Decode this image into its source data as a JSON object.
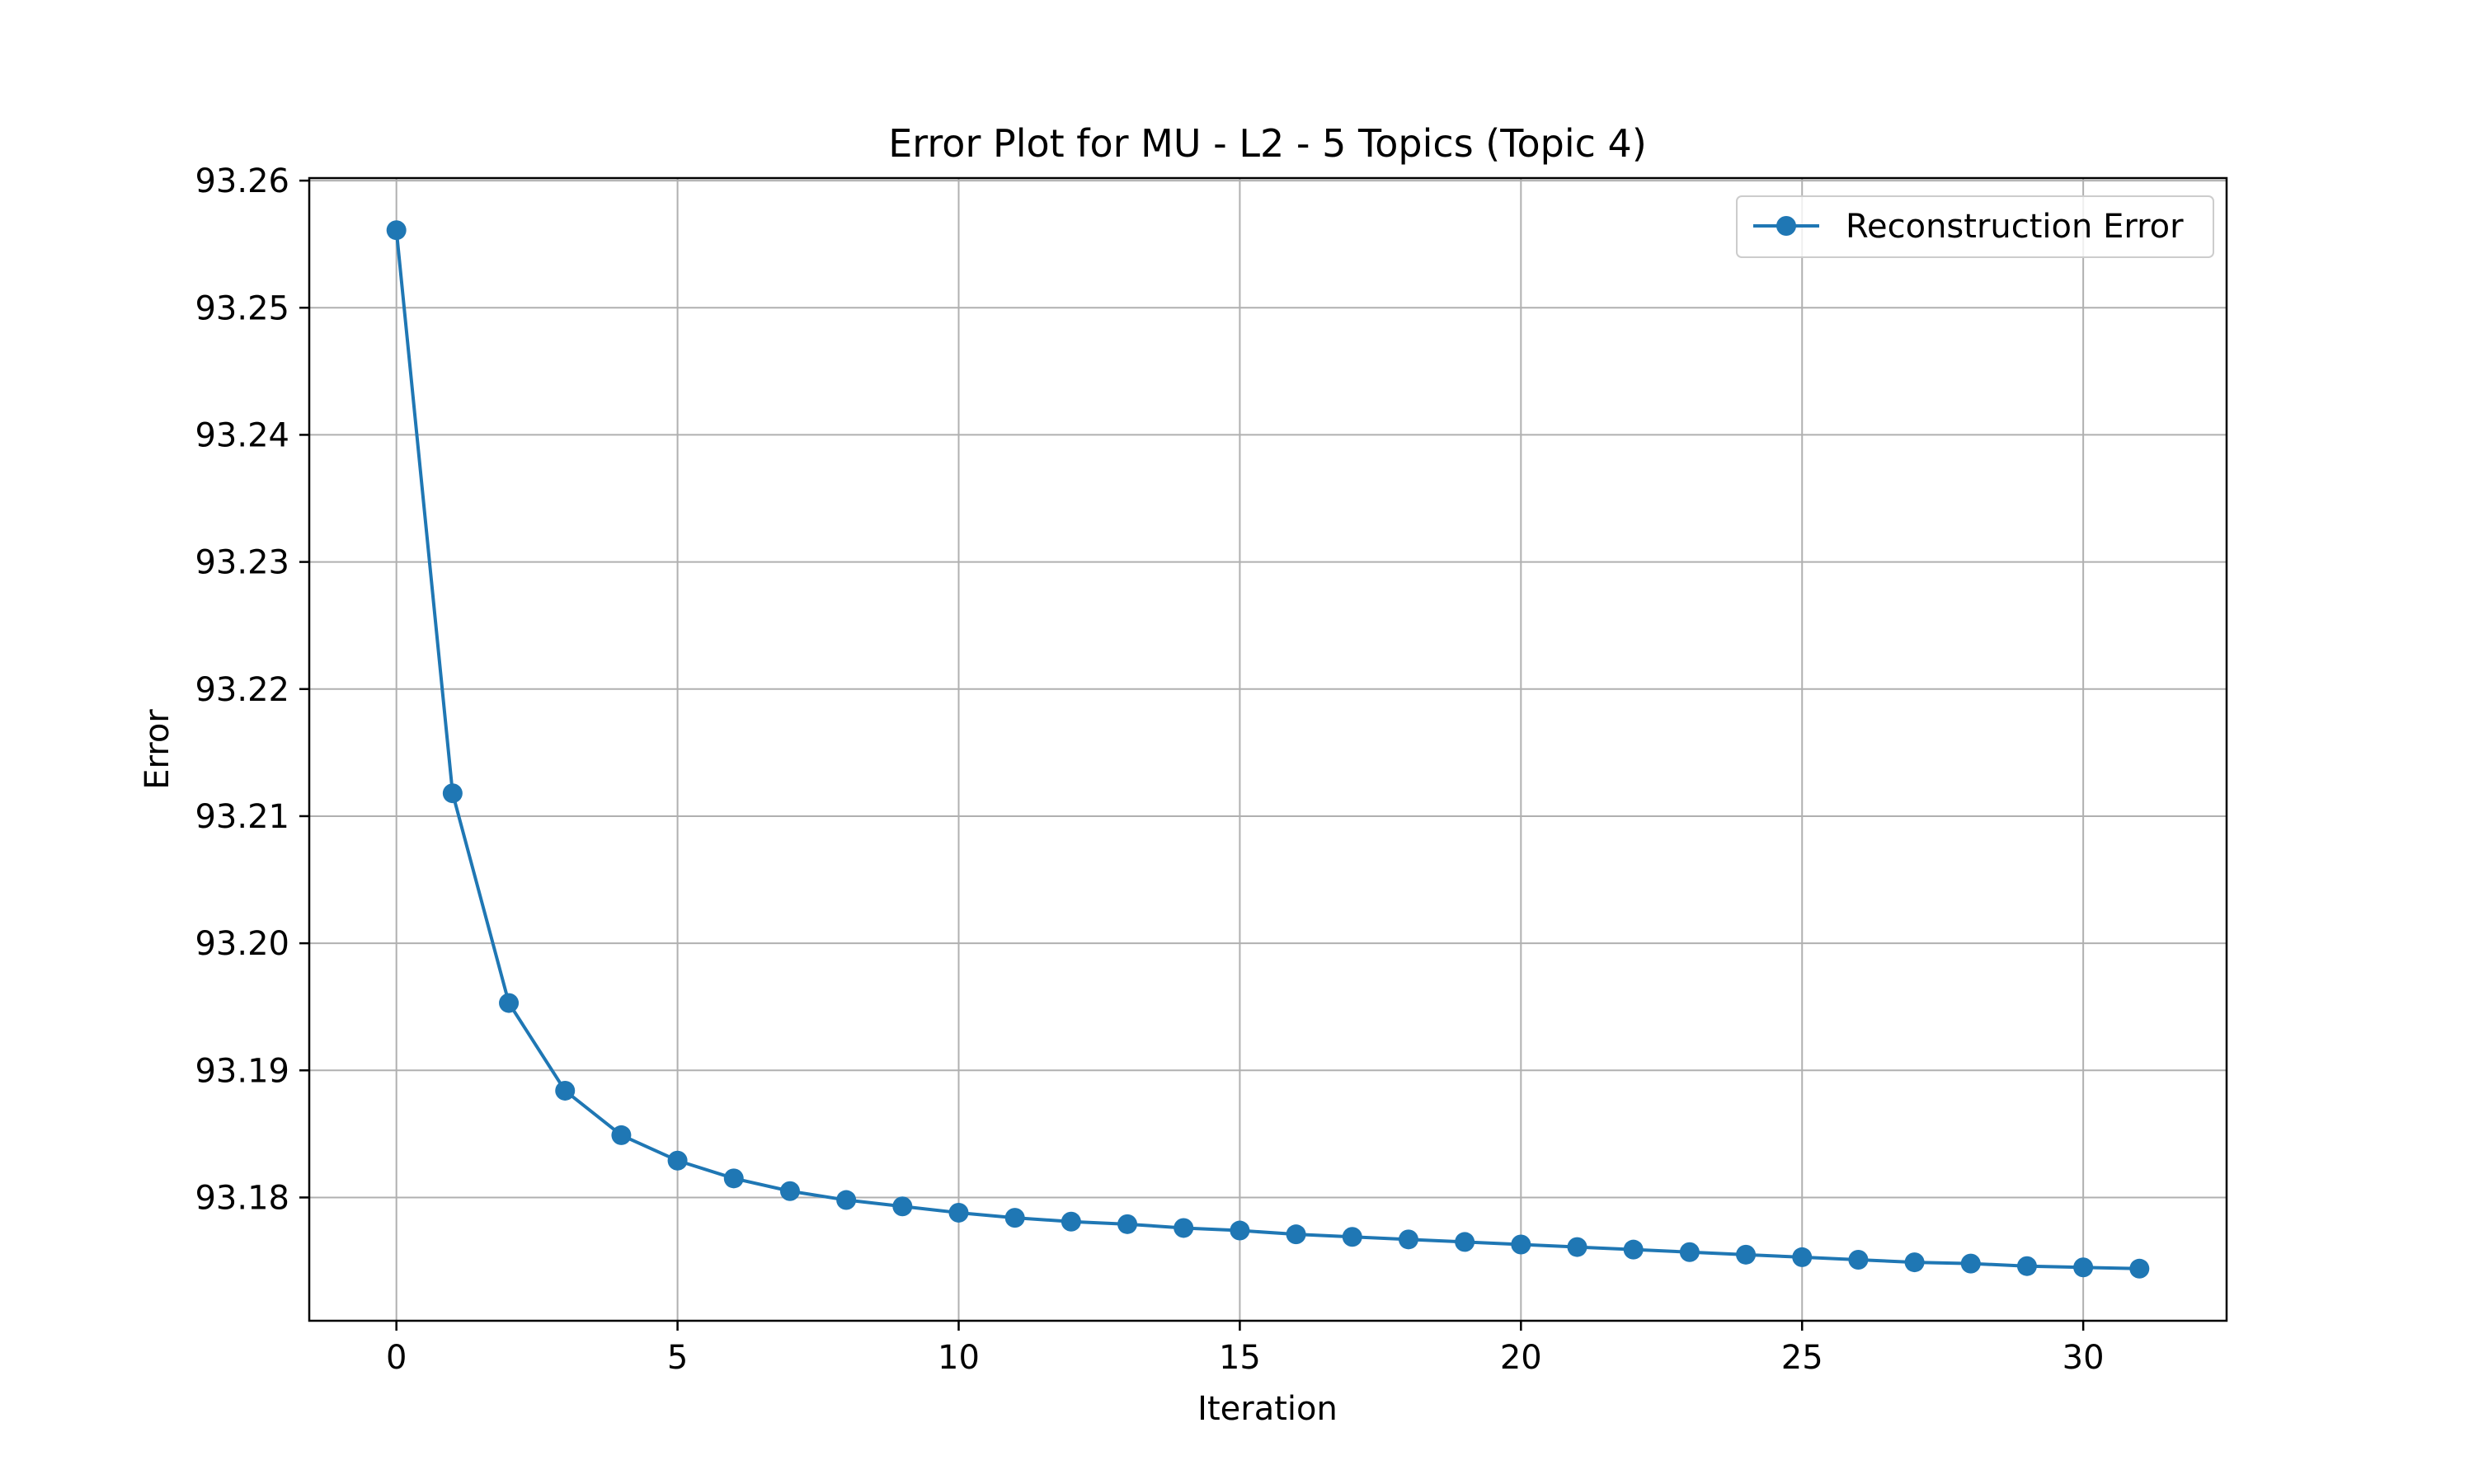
{
  "chart_data": {
    "type": "line",
    "title": "Error Plot for MU - L2 - 5 Topics (Topic 4)",
    "xlabel": "Iteration",
    "ylabel": "Error",
    "xlim": [
      -1.55,
      32.55
    ],
    "ylim": [
      93.1703,
      93.2602
    ],
    "x_ticks": [
      0,
      5,
      10,
      15,
      20,
      25,
      30
    ],
    "x_tick_labels": [
      "0",
      "5",
      "10",
      "15",
      "20",
      "25",
      "30"
    ],
    "y_ticks": [
      93.18,
      93.19,
      93.2,
      93.21,
      93.22,
      93.23,
      93.24,
      93.25,
      93.26
    ],
    "y_tick_labels": [
      "93.18",
      "93.19",
      "93.20",
      "93.21",
      "93.22",
      "93.23",
      "93.24",
      "93.25",
      "93.26"
    ],
    "grid": true,
    "legend_position": "top-right",
    "series": [
      {
        "name": "Reconstruction Error",
        "color": "#1f77b4",
        "marker": "circle",
        "x": [
          0,
          1,
          2,
          3,
          4,
          5,
          6,
          7,
          8,
          9,
          10,
          11,
          12,
          13,
          14,
          15,
          16,
          17,
          18,
          19,
          20,
          21,
          22,
          23,
          24,
          25,
          26,
          27,
          28,
          29,
          30,
          31
        ],
        "values": [
          93.2561,
          93.2118,
          93.1953,
          93.1884,
          93.1849,
          93.1829,
          93.1815,
          93.1805,
          93.1798,
          93.1793,
          93.1788,
          93.1784,
          93.1781,
          93.1779,
          93.1776,
          93.1774,
          93.1771,
          93.1769,
          93.1767,
          93.1765,
          93.1763,
          93.1761,
          93.1759,
          93.1757,
          93.1755,
          93.1753,
          93.1751,
          93.1749,
          93.1748,
          93.1746,
          93.1745,
          93.1744
        ]
      }
    ]
  }
}
